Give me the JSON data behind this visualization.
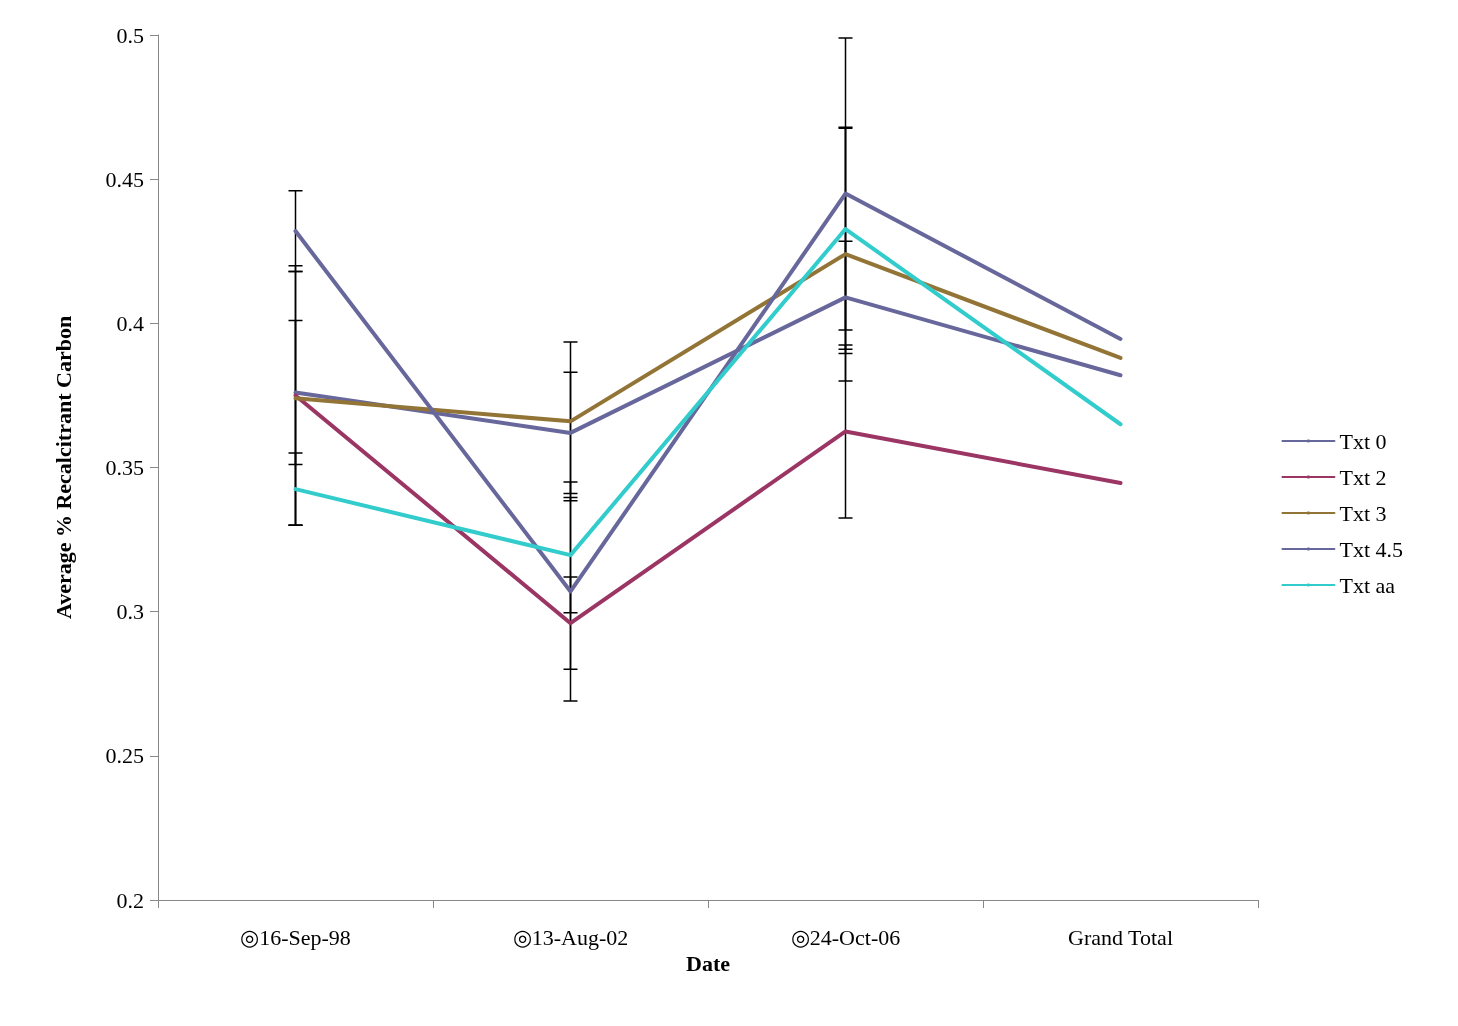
{
  "chart_data": {
    "type": "line",
    "xlabel": "Date",
    "ylabel": "Average % Recalcitrant Carbon",
    "categories": [
      "◎16-Sep-98",
      "◎13-Aug-02",
      "◎24-Oct-06",
      "Grand Total"
    ],
    "series": [
      {
        "name": "Txt 0",
        "color": "#67679b",
        "values": [
          0.376,
          0.362,
          0.409,
          0.382
        ],
        "errors": [
          0.025,
          0.021,
          0.0195,
          null
        ]
      },
      {
        "name": "Txt 2",
        "color": "#9b3563",
        "values": [
          0.375,
          0.296,
          0.3625,
          0.3446
        ],
        "errors": [
          0.045,
          0.016,
          0.03,
          null
        ]
      },
      {
        "name": "Txt 3",
        "color": "#927536",
        "values": [
          0.374,
          0.366,
          0.424,
          0.388
        ],
        "errors": [
          0.044,
          0.0275,
          0.044,
          null
        ]
      },
      {
        "name": "Txt 4.5",
        "color": "#67679b",
        "values": [
          0.432,
          0.307,
          0.445,
          0.3946
        ],
        "errors": [
          0.014,
          0.038,
          0.054,
          null
        ]
      },
      {
        "name": "Txt aa",
        "color": "#33cccc",
        "values": [
          0.3425,
          0.3196,
          0.4327,
          0.365
        ],
        "errors": [
          0.0125,
          0.02,
          0.035,
          null
        ]
      }
    ],
    "ylim": [
      0.2,
      0.5
    ],
    "yticks": [
      0.2,
      0.25,
      0.3,
      0.35,
      0.4,
      0.45,
      0.5
    ],
    "grid": false,
    "legend": "right",
    "marker": "none",
    "line_style": "solid"
  }
}
